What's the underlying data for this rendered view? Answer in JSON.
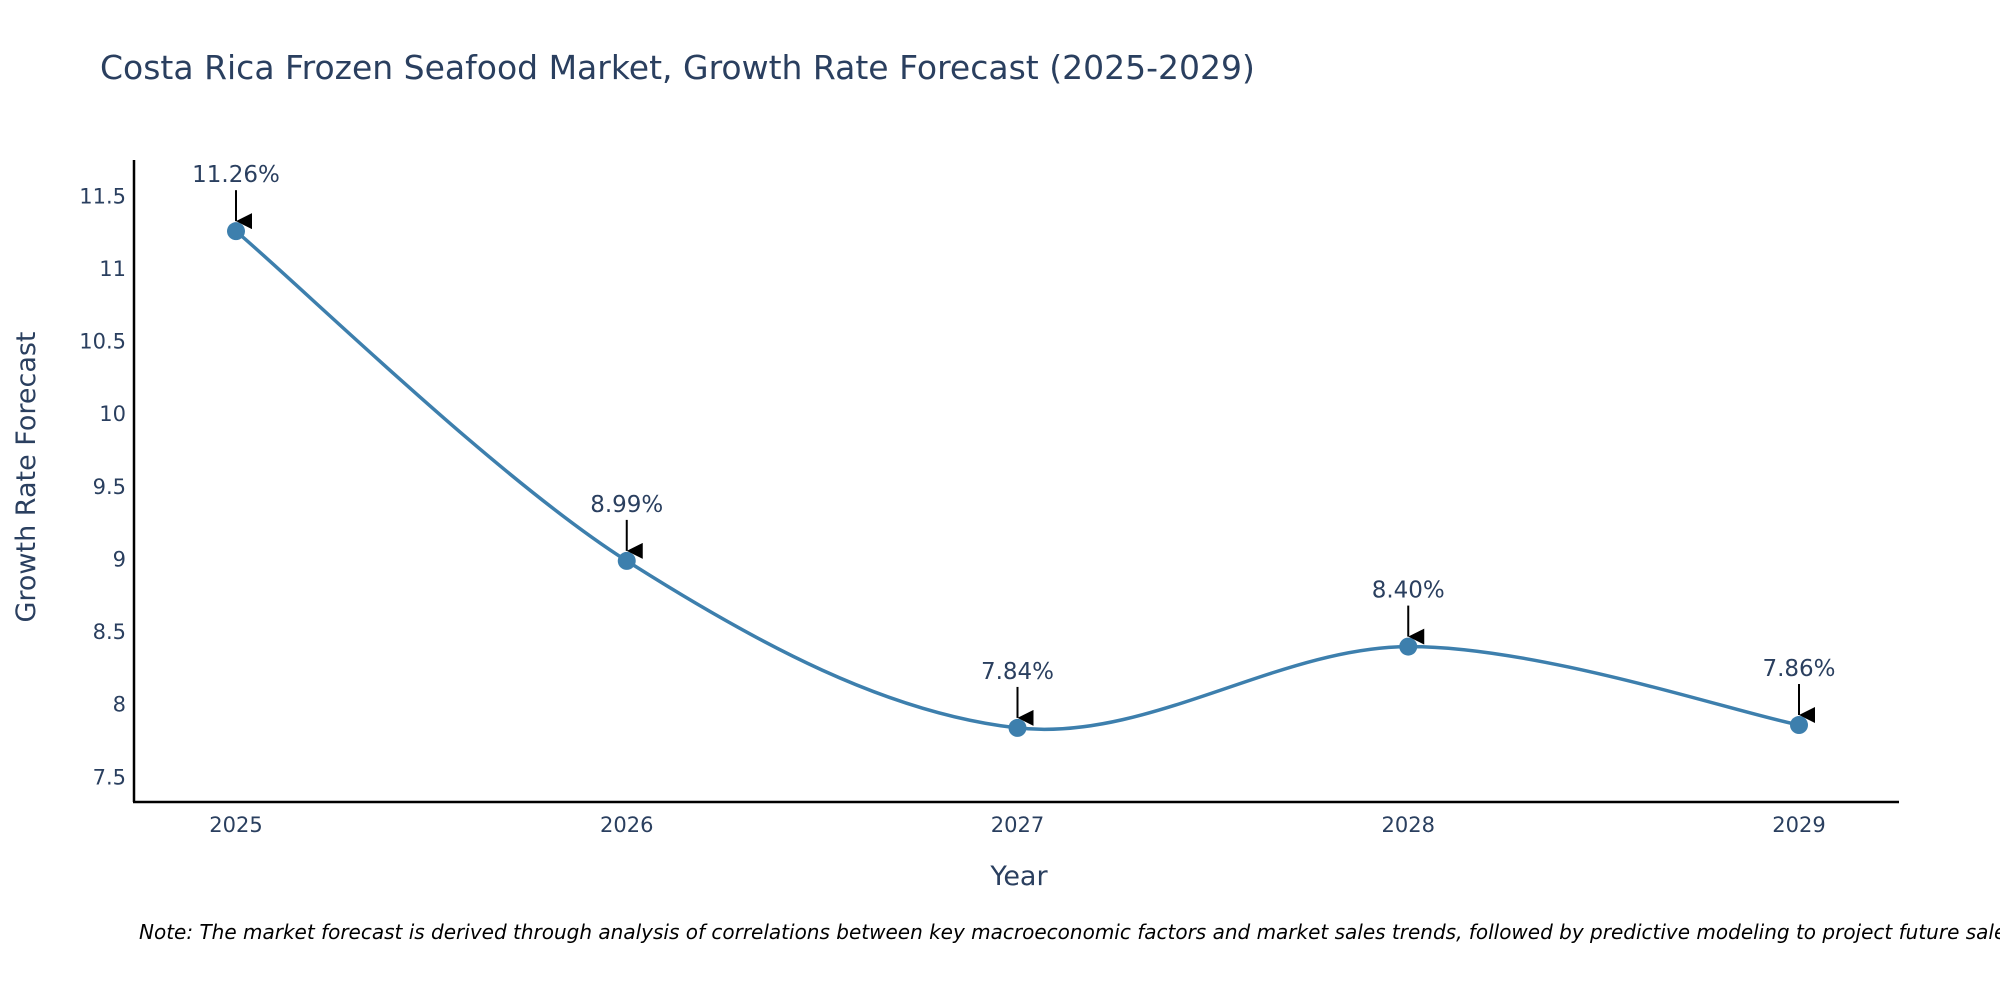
{
  "chart_data": {
    "type": "line",
    "title": "Costa Rica Frozen Seafood Market, Growth Rate Forecast (2025-2029)",
    "xlabel": "Year",
    "ylabel": "Growth Rate Forecast",
    "categories": [
      "2025",
      "2026",
      "2027",
      "2028",
      "2029"
    ],
    "series": [
      {
        "name": "Growth Rate Forecast",
        "values": [
          11.26,
          8.99,
          7.84,
          8.4,
          7.86
        ],
        "labels": [
          "11.26%",
          "8.99%",
          "7.84%",
          "8.40%",
          "7.86%"
        ]
      }
    ],
    "ylim": [
      7.33,
      11.75
    ],
    "yticks": [
      7.5,
      8,
      8.5,
      9,
      9.5,
      10,
      10.5,
      11,
      11.5
    ],
    "ytick_labels": [
      "7.5",
      "8",
      "8.5",
      "9",
      "9.5",
      "10",
      "10.5",
      "11",
      "11.5"
    ],
    "grid": false,
    "line_shape": "spline",
    "colors": {
      "line": "#3d7fad",
      "marker": "#3d7fad",
      "text": "#2a3f5f",
      "axis": "#000000",
      "arrow": "#000000"
    }
  },
  "note": "Note: The market forecast is derived through analysis of correlations between key macroeconomic factors and market sales trends, followed by predictive modeling to project future sales."
}
